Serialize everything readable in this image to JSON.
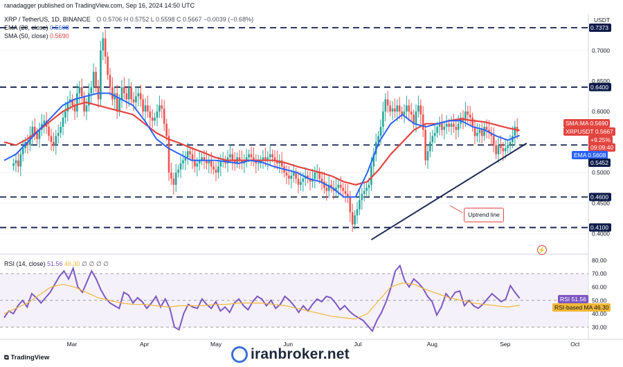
{
  "header": {
    "publisher": "ranadagger published on TradingView.com, Sep 16, 2024 14:50 UTC",
    "symbol": "XRP / TetherUS, 1D, BINANCE",
    "ohlc": "O 0.5706  H 0.5752  L 0.5598  C 0.5667  −0.0039 (−0.68%)",
    "ema_label": "EMA (20, close)",
    "ema_value": "0.5608",
    "sma_label": "SMA (50, close)",
    "sma_value": "0.5690",
    "rsi_label": "RSI (14, close)",
    "rsi_value": "51.56",
    "rsi_ma_value": "46.30",
    "rsi_extra": "∅ ∅ ∅ ∅",
    "currency": "USDT"
  },
  "price_tags": {
    "sma": "SMA:MA  0.5690",
    "xrp": "XRPUSDT  0.5667",
    "change": "+9.25%",
    "countdown": "09:09:40",
    "ema": "EMA  0.5608",
    "ema_level": "0.5452"
  },
  "rsi_tags": {
    "rsi": "RSI  51.56",
    "rsi_ma": "RSI-based MA  46.30"
  },
  "annotation": "Uptrend line",
  "watermark": "iranbroker.net",
  "tv_logo": "TradingView",
  "colors": {
    "up": "#26a69a",
    "down": "#ef5350",
    "ema": "#2962ff",
    "sma": "#e2443f",
    "rsi": "#7e57c2",
    "rsi_ma": "#f2b836",
    "level": "#0d1b4a",
    "trend": "#1e2a55"
  },
  "chart_data": [
    {
      "type": "candlestick",
      "title": "XRP / TetherUS, 1D, BINANCE",
      "ylim": [
        0.38,
        0.76
      ],
      "y_ticks": [
        0.4,
        0.45,
        0.5,
        0.55,
        0.6,
        0.65,
        0.7
      ],
      "x_ticks": [
        "Mar",
        "Apr",
        "May",
        "Jun",
        "Jul",
        "Aug",
        "Sep",
        "Oct"
      ],
      "x_tick_days": [
        29,
        60,
        90,
        121,
        151,
        182,
        213,
        243
      ],
      "horizontal_levels": [
        0.7373,
        0.64,
        0.5452,
        0.46,
        0.41
      ],
      "level_labels": [
        "0.7373",
        "0.6400",
        "0.5452",
        "0.4600",
        "0.4100"
      ],
      "uptrend_line": {
        "from": {
          "day": 156,
          "price": 0.39
        },
        "to": {
          "day": 222,
          "price": 0.548
        },
        "label": "Uptrend line"
      },
      "price_closes": [
        0.515,
        0.52,
        0.51,
        0.53,
        0.54,
        0.55,
        0.545,
        0.56,
        0.575,
        0.565,
        0.555,
        0.57,
        0.58,
        0.585,
        0.575,
        0.56,
        0.55,
        0.545,
        0.56,
        0.565,
        0.575,
        0.59,
        0.6,
        0.615,
        0.62,
        0.61,
        0.6,
        0.63,
        0.64,
        0.625,
        0.6,
        0.61,
        0.63,
        0.64,
        0.665,
        0.64,
        0.62,
        0.7,
        0.72,
        0.69,
        0.66,
        0.64,
        0.62,
        0.63,
        0.6,
        0.62,
        0.64,
        0.63,
        0.62,
        0.64,
        0.62,
        0.615,
        0.625,
        0.63,
        0.62,
        0.6,
        0.61,
        0.6,
        0.59,
        0.585,
        0.59,
        0.6,
        0.61,
        0.605,
        0.58,
        0.56,
        0.5,
        0.49,
        0.48,
        0.5,
        0.505,
        0.515,
        0.52,
        0.525,
        0.535,
        0.53,
        0.52,
        0.51,
        0.515,
        0.52,
        0.525,
        0.52,
        0.515,
        0.52,
        0.51,
        0.505,
        0.5,
        0.51,
        0.52,
        0.52,
        0.515,
        0.525,
        0.53,
        0.52,
        0.515,
        0.525,
        0.52,
        0.515,
        0.52,
        0.525,
        0.53,
        0.525,
        0.52,
        0.515,
        0.515,
        0.52,
        0.525,
        0.52,
        0.525,
        0.53,
        0.525,
        0.52,
        0.515,
        0.52,
        0.51,
        0.5,
        0.495,
        0.49,
        0.495,
        0.5,
        0.49,
        0.48,
        0.485,
        0.49,
        0.495,
        0.49,
        0.485,
        0.49,
        0.5,
        0.5,
        0.49,
        0.485,
        0.475,
        0.47,
        0.48,
        0.475,
        0.47,
        0.475,
        0.48,
        0.475,
        0.47,
        0.465,
        0.46,
        0.435,
        0.415,
        0.43,
        0.44,
        0.455,
        0.465,
        0.47,
        0.475,
        0.48,
        0.51,
        0.53,
        0.55,
        0.56,
        0.575,
        0.6,
        0.62,
        0.61,
        0.6,
        0.605,
        0.6,
        0.61,
        0.6,
        0.595,
        0.6,
        0.61,
        0.6,
        0.595,
        0.58,
        0.6,
        0.61,
        0.595,
        0.57,
        0.52,
        0.535,
        0.55,
        0.56,
        0.565,
        0.575,
        0.58,
        0.57,
        0.575,
        0.58,
        0.575,
        0.58,
        0.575,
        0.57,
        0.58,
        0.59,
        0.585,
        0.6,
        0.595,
        0.59,
        0.575,
        0.56,
        0.565,
        0.57,
        0.56,
        0.575,
        0.57,
        0.565,
        0.56,
        0.545,
        0.53,
        0.545,
        0.54,
        0.535,
        0.54,
        0.545,
        0.55,
        0.56,
        0.575,
        0.5667
      ],
      "ema_20": [
        0.52,
        0.53,
        0.55,
        0.57,
        0.59,
        0.61,
        0.62,
        0.625,
        0.63,
        0.63,
        0.62,
        0.61,
        0.585,
        0.555,
        0.54,
        0.53,
        0.52,
        0.52,
        0.52,
        0.518,
        0.515,
        0.52,
        0.517,
        0.51,
        0.505,
        0.5,
        0.49,
        0.485,
        0.475,
        0.46,
        0.46,
        0.5,
        0.55,
        0.58,
        0.595,
        0.58,
        0.575,
        0.58,
        0.585,
        0.585,
        0.575,
        0.57,
        0.56,
        0.553,
        0.5608
      ],
      "sma_50": [
        0.55,
        0.545,
        0.555,
        0.57,
        0.585,
        0.6,
        0.61,
        0.615,
        0.61,
        0.605,
        0.6,
        0.595,
        0.58,
        0.565,
        0.555,
        0.548,
        0.54,
        0.533,
        0.525,
        0.52,
        0.52,
        0.52,
        0.52,
        0.52,
        0.516,
        0.51,
        0.505,
        0.5,
        0.494,
        0.485,
        0.48,
        0.485,
        0.505,
        0.53,
        0.55,
        0.57,
        0.58,
        0.58,
        0.585,
        0.588,
        0.585,
        0.583,
        0.578,
        0.573,
        0.569
      ]
    },
    {
      "type": "line",
      "title": "RSI (14, close)",
      "ylim": [
        25,
        82
      ],
      "y_ticks": [
        30,
        40,
        50,
        60,
        70,
        80
      ],
      "band": [
        30,
        70
      ],
      "series": [
        {
          "name": "RSI",
          "values": [
            37,
            42,
            40,
            46,
            50,
            45,
            55,
            52,
            48,
            52,
            56,
            62,
            68,
            72,
            66,
            74,
            60,
            56,
            64,
            72,
            66,
            58,
            52,
            48,
            46,
            44,
            56,
            54,
            48,
            52,
            49,
            44,
            48,
            53,
            45,
            51,
            44,
            30,
            28,
            40,
            47,
            45,
            44,
            51,
            47,
            44,
            49,
            42,
            45,
            41,
            48,
            51,
            46,
            43,
            49,
            53,
            51,
            46,
            50,
            44,
            47,
            53,
            50,
            46,
            41,
            46,
            42,
            47,
            51,
            49,
            53,
            52,
            48,
            43,
            46,
            42,
            39,
            37,
            35,
            31,
            27,
            35,
            41,
            49,
            59,
            72,
            76,
            65,
            60,
            66,
            63,
            59,
            53,
            49,
            39,
            45,
            55,
            51,
            56,
            57,
            46,
            50,
            46,
            44,
            47,
            51,
            55,
            52,
            49,
            51,
            61,
            56,
            51.56
          ]
        },
        {
          "name": "RSI-based MA",
          "values": [
            40,
            44,
            48,
            54,
            60,
            62,
            60,
            56,
            52,
            50,
            48,
            47,
            47,
            46,
            45,
            46,
            46,
            46,
            47,
            47,
            48,
            48,
            48,
            47,
            46,
            44,
            42,
            40,
            38,
            37,
            36,
            40,
            50,
            60,
            63,
            62,
            58,
            55,
            52,
            50,
            48,
            47,
            46,
            45,
            46.3
          ]
        }
      ]
    }
  ]
}
